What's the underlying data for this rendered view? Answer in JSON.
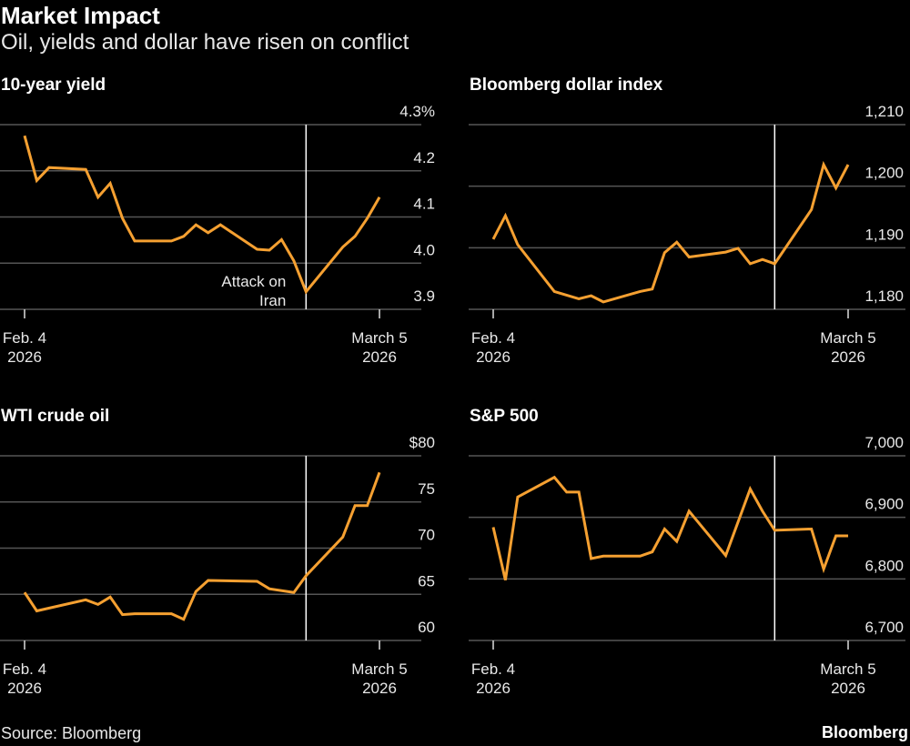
{
  "header": {
    "title": "Market Impact",
    "subtitle": "Oil, yields and dollar have risen on conflict"
  },
  "footer": {
    "source": "Source: Bloomberg",
    "brand": "Bloomberg"
  },
  "colors": {
    "background": "#000000",
    "line": "#f5a031",
    "grid": "#555555",
    "event_line": "#ffffff"
  },
  "chart_data": [
    {
      "type": "line",
      "title": "10-year yield",
      "ylim": [
        3.9,
        4.3
      ],
      "yticks": [
        4.3,
        4.2,
        4.1,
        4.0,
        3.9
      ],
      "ytick_labels": [
        "4.3%",
        "4.2",
        "4.1",
        "4.0",
        "3.9"
      ],
      "xlim": [
        "2026-02-04",
        "2026-03-05"
      ],
      "xtick_labels": [
        [
          "Feb. 4",
          "2026"
        ],
        [
          "March 5",
          "2026"
        ]
      ],
      "grid": true,
      "event": {
        "date": "2026-02-27",
        "label": [
          "Attack on",
          "Iran"
        ]
      },
      "series": [
        {
          "points": [
            [
              "2026-02-04",
              4.276
            ],
            [
              "2026-02-05",
              4.179
            ],
            [
              "2026-02-06",
              4.207
            ],
            [
              "2026-02-09",
              4.203
            ],
            [
              "2026-02-10",
              4.143
            ],
            [
              "2026-02-11",
              4.173
            ],
            [
              "2026-02-12",
              4.097
            ],
            [
              "2026-02-13",
              4.048
            ],
            [
              "2026-02-16",
              4.048
            ],
            [
              "2026-02-17",
              4.058
            ],
            [
              "2026-02-18",
              4.083
            ],
            [
              "2026-02-19",
              4.066
            ],
            [
              "2026-02-20",
              4.083
            ],
            [
              "2026-02-23",
              4.03
            ],
            [
              "2026-02-24",
              4.028
            ],
            [
              "2026-02-25",
              4.051
            ],
            [
              "2026-02-26",
              4.005
            ],
            [
              "2026-02-27",
              3.938
            ],
            [
              "2026-03-02",
              4.035
            ],
            [
              "2026-03-03",
              4.058
            ],
            [
              "2026-03-04",
              4.097
            ],
            [
              "2026-03-05",
              4.143
            ]
          ]
        }
      ]
    },
    {
      "type": "line",
      "title": "Bloomberg dollar index",
      "ylim": [
        1180,
        1210
      ],
      "yticks": [
        1210,
        1200,
        1190,
        1180
      ],
      "ytick_labels": [
        "1,210",
        "1,200",
        "1,190",
        "1,180"
      ],
      "xlim": [
        "2026-02-04",
        "2026-03-05"
      ],
      "xtick_labels": [
        [
          "Feb. 4",
          "2026"
        ],
        [
          "March 5",
          "2026"
        ]
      ],
      "grid": true,
      "event": {
        "date": "2026-02-27"
      },
      "series": [
        {
          "points": [
            [
              "2026-02-04",
              1191.4
            ],
            [
              "2026-02-05",
              1195.2
            ],
            [
              "2026-02-06",
              1190.5
            ],
            [
              "2026-02-09",
              1182.9
            ],
            [
              "2026-02-11",
              1181.7
            ],
            [
              "2026-02-12",
              1182.2
            ],
            [
              "2026-02-13",
              1181.2
            ],
            [
              "2026-02-16",
              1182.9
            ],
            [
              "2026-02-17",
              1183.3
            ],
            [
              "2026-02-18",
              1189.2
            ],
            [
              "2026-02-19",
              1190.9
            ],
            [
              "2026-02-20",
              1188.5
            ],
            [
              "2026-02-23",
              1189.3
            ],
            [
              "2026-02-24",
              1189.9
            ],
            [
              "2026-02-25",
              1187.4
            ],
            [
              "2026-02-26",
              1188.1
            ],
            [
              "2026-02-27",
              1187.4
            ],
            [
              "2026-03-02",
              1196.2
            ],
            [
              "2026-03-03",
              1203.5
            ],
            [
              "2026-03-04",
              1199.7
            ],
            [
              "2026-03-05",
              1203.5
            ]
          ]
        }
      ]
    },
    {
      "type": "line",
      "title": "WTI crude oil",
      "ylim": [
        60,
        80
      ],
      "yticks": [
        80,
        75,
        70,
        65,
        60
      ],
      "ytick_labels": [
        "$80",
        "75",
        "70",
        "65",
        "60"
      ],
      "xlim": [
        "2026-02-04",
        "2026-03-05"
      ],
      "xtick_labels": [
        [
          "Feb. 4",
          "2026"
        ],
        [
          "March 5",
          "2026"
        ]
      ],
      "grid": true,
      "event": {
        "date": "2026-02-27"
      },
      "series": [
        {
          "points": [
            [
              "2026-02-04",
              65.2
            ],
            [
              "2026-02-05",
              63.2
            ],
            [
              "2026-02-09",
              64.4
            ],
            [
              "2026-02-10",
              63.9
            ],
            [
              "2026-02-11",
              64.7
            ],
            [
              "2026-02-12",
              62.8
            ],
            [
              "2026-02-13",
              62.9
            ],
            [
              "2026-02-16",
              62.9
            ],
            [
              "2026-02-17",
              62.3
            ],
            [
              "2026-02-18",
              65.3
            ],
            [
              "2026-02-19",
              66.5
            ],
            [
              "2026-02-23",
              66.4
            ],
            [
              "2026-02-24",
              65.6
            ],
            [
              "2026-02-26",
              65.2
            ],
            [
              "2026-02-27",
              67.0
            ],
            [
              "2026-03-02",
              71.2
            ],
            [
              "2026-03-03",
              74.6
            ],
            [
              "2026-03-04",
              74.6
            ],
            [
              "2026-03-05",
              78.2
            ]
          ]
        }
      ]
    },
    {
      "type": "line",
      "title": "S&P 500",
      "ylim": [
        6700,
        7000
      ],
      "yticks": [
        7000,
        6900,
        6800,
        6700
      ],
      "ytick_labels": [
        "7,000",
        "6,900",
        "6,800",
        "6,700"
      ],
      "xlim": [
        "2026-02-04",
        "2026-03-05"
      ],
      "xtick_labels": [
        [
          "Feb. 4",
          "2026"
        ],
        [
          "March 5",
          "2026"
        ]
      ],
      "grid": true,
      "event": {
        "date": "2026-02-27"
      },
      "series": [
        {
          "points": [
            [
              "2026-02-04",
              6884
            ],
            [
              "2026-02-05",
              6798
            ],
            [
              "2026-02-06",
              6933
            ],
            [
              "2026-02-09",
              6965
            ],
            [
              "2026-02-10",
              6941
            ],
            [
              "2026-02-11",
              6941
            ],
            [
              "2026-02-12",
              6833
            ],
            [
              "2026-02-13",
              6837
            ],
            [
              "2026-02-16",
              6837
            ],
            [
              "2026-02-17",
              6844
            ],
            [
              "2026-02-18",
              6881
            ],
            [
              "2026-02-19",
              6861
            ],
            [
              "2026-02-20",
              6910
            ],
            [
              "2026-02-23",
              6838
            ],
            [
              "2026-02-25",
              6946
            ],
            [
              "2026-02-26",
              6910
            ],
            [
              "2026-02-27",
              6879
            ],
            [
              "2026-03-02",
              6881
            ],
            [
              "2026-03-03",
              6816
            ],
            [
              "2026-03-04",
              6870
            ],
            [
              "2026-03-05",
              6870
            ]
          ]
        }
      ]
    }
  ]
}
